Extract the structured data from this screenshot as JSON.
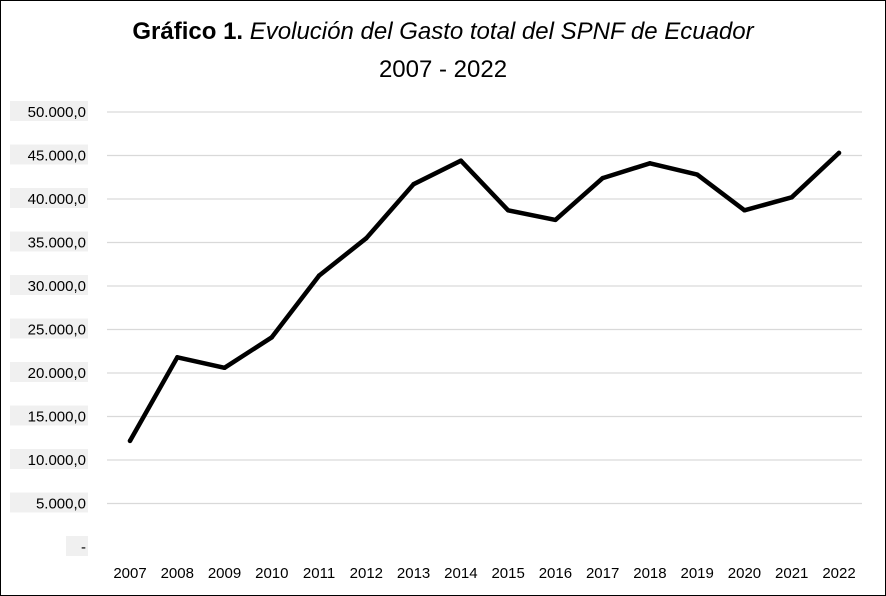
{
  "title": {
    "prefix": "Gráfico 1.",
    "main": "Evolución del Gasto total del SPNF de Ecuador",
    "subtitle": "2007 - 2022"
  },
  "colors": {
    "line": "#000000",
    "grid": "#d9d9d9",
    "label_bg": "#f0f0f0"
  },
  "chart_data": {
    "type": "line",
    "title": "Gráfico 1. Evolución del Gasto total del SPNF de Ecuador 2007 - 2022",
    "xlabel": "",
    "ylabel": "",
    "categories": [
      "2007",
      "2008",
      "2009",
      "2010",
      "2011",
      "2012",
      "2013",
      "2014",
      "2015",
      "2016",
      "2017",
      "2018",
      "2019",
      "2020",
      "2021",
      "2022"
    ],
    "series": [
      {
        "values": [
          12200,
          21800,
          20600,
          24100,
          31200,
          35500,
          41700,
          44400,
          38700,
          37600,
          42400,
          44100,
          42800,
          38700,
          40200,
          45300
        ]
      }
    ],
    "ylim": [
      0,
      50000
    ],
    "yticks": [
      0,
      5000,
      10000,
      15000,
      20000,
      25000,
      30000,
      35000,
      40000,
      45000,
      50000
    ],
    "ytick_labels": [
      "-",
      "5.000,0",
      "10.000,0",
      "15.000,0",
      "20.000,0",
      "25.000,0",
      "30.000,0",
      "35.000,0",
      "40.000,0",
      "45.000,0",
      "50.000,0"
    ],
    "grid": true,
    "legend": "none"
  }
}
